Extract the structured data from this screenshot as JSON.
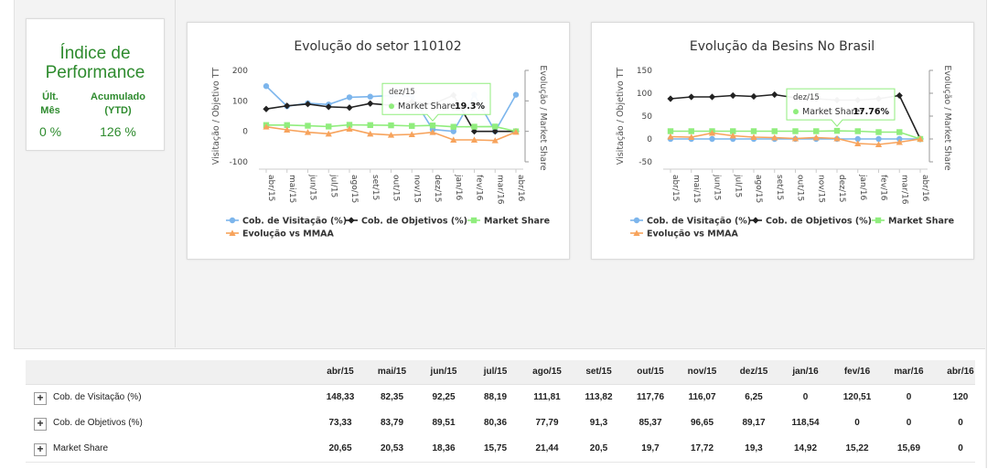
{
  "kpi": {
    "title_line1": "Índice de",
    "title_line2": "Performance",
    "col1_header_line1": "Últ.",
    "col1_header_line2": "Mês",
    "col2_header_line1": "Acumulado",
    "col2_header_line2": "(YTD)",
    "col1_value": "0 %",
    "col2_value": "126 %"
  },
  "chart_data": [
    {
      "type": "line",
      "title": "Evolução do setor 110102",
      "ylabel": "Visitação / Objetivo TT",
      "y2label": "Evolução / Market Share",
      "categories": [
        "abr/15",
        "mai/15",
        "jun/15",
        "jul/15",
        "ago/15",
        "set/15",
        "out/15",
        "nov/15",
        "dez/15",
        "jan/16",
        "fev/16",
        "mar/16",
        "abr/16"
      ],
      "ylim": [
        -100,
        200
      ],
      "yticks": [
        "200",
        "100",
        "0",
        "-100"
      ],
      "grid": false,
      "legend_position": "bottom",
      "series": [
        {
          "name": "Cob. de Visitação (%)",
          "color": "#7cb5ec",
          "marker": "circle",
          "values": [
            148.33,
            82.35,
            92.25,
            88.19,
            111.81,
            113.82,
            117.76,
            116.07,
            6.25,
            0,
            120.51,
            0,
            120
          ]
        },
        {
          "name": "Cob. de Objetivos (%)",
          "color": "#222222",
          "marker": "diamond",
          "values": [
            73.33,
            83.79,
            89.51,
            80.36,
            77.79,
            91.3,
            85.37,
            96.65,
            89.17,
            118.54,
            0,
            0,
            0
          ]
        },
        {
          "name": "Market Share",
          "color": "#90ed7d",
          "marker": "square",
          "values": [
            20.65,
            20.53,
            18.36,
            15.75,
            21.44,
            20.5,
            19.7,
            17.72,
            19.3,
            14.92,
            15.22,
            15.69,
            0
          ]
        },
        {
          "name": "Evolução vs MMAA",
          "color": "#f7a35c",
          "marker": "triangle",
          "values": [
            15,
            5,
            -3,
            -8,
            8,
            -8,
            -12,
            -10,
            -3,
            -28,
            -28,
            -30,
            -2
          ]
        }
      ],
      "tooltip": {
        "category": "dez/15",
        "series": "Market Share",
        "value": "19.3%"
      }
    },
    {
      "type": "line",
      "title": "Evolução da Besins No Brasil",
      "ylabel": "Visitação / Objetivo TT",
      "y2label": "Evolução / Market Share",
      "categories": [
        "abr/15",
        "mai/15",
        "jun/15",
        "jul/15",
        "ago/15",
        "set/15",
        "out/15",
        "nov/15",
        "dez/15",
        "jan/16",
        "fev/16",
        "mar/16",
        "abr/16"
      ],
      "ylim": [
        -50,
        150
      ],
      "yticks": [
        "150",
        "100",
        "50",
        "0",
        "-50"
      ],
      "grid": false,
      "legend_position": "bottom",
      "series": [
        {
          "name": "Cob. de Visitação (%)",
          "color": "#7cb5ec",
          "marker": "circle",
          "values": [
            0,
            0,
            0,
            0,
            0,
            0,
            0,
            0,
            0,
            0,
            0,
            0,
            0
          ]
        },
        {
          "name": "Cob. de Objetivos (%)",
          "color": "#222222",
          "marker": "diamond",
          "values": [
            88,
            92,
            92,
            95,
            93,
            97,
            90,
            88,
            85,
            85,
            88,
            95,
            0
          ]
        },
        {
          "name": "Market Share",
          "color": "#90ed7d",
          "marker": "square",
          "values": [
            17,
            17,
            17,
            17,
            17,
            17,
            17,
            17,
            17.76,
            17,
            15,
            15,
            0
          ]
        },
        {
          "name": "Evolução vs MMAA",
          "color": "#f7a35c",
          "marker": "triangle",
          "values": [
            5,
            4,
            13,
            7,
            4,
            3,
            1,
            3,
            1,
            -10,
            -12,
            -7,
            0
          ]
        }
      ],
      "tooltip": {
        "category": "dez/15",
        "series": "Market Share",
        "value": "17.76%"
      }
    }
  ],
  "table": {
    "columns": [
      "abr/15",
      "mai/15",
      "jun/15",
      "jul/15",
      "ago/15",
      "set/15",
      "out/15",
      "nov/15",
      "dez/15",
      "jan/16",
      "fev/16",
      "mar/16",
      "abr/16"
    ],
    "expand_symbol": "+",
    "rows": [
      {
        "label": "Cob. de Visitação (%)",
        "values": [
          "148,33",
          "82,35",
          "92,25",
          "88,19",
          "111,81",
          "113,82",
          "117,76",
          "116,07",
          "6,25",
          "0",
          "120,51",
          "0",
          "120"
        ]
      },
      {
        "label": "Cob. de Objetivos (%)",
        "values": [
          "73,33",
          "83,79",
          "89,51",
          "80,36",
          "77,79",
          "91,3",
          "85,37",
          "96,65",
          "89,17",
          "118,54",
          "0",
          "0",
          "0"
        ]
      },
      {
        "label": "Market Share",
        "values": [
          "20,65",
          "20,53",
          "18,36",
          "15,75",
          "21,44",
          "20,5",
          "19,7",
          "17,72",
          "19,3",
          "14,92",
          "15,22",
          "15,69",
          "0"
        ]
      }
    ]
  }
}
